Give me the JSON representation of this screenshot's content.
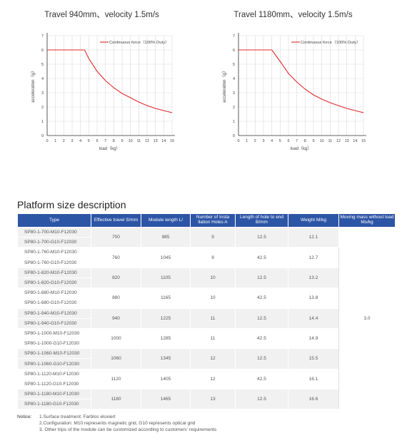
{
  "charts": [
    {
      "title": "Travel 940mm、velocity 1.5m/s",
      "ylabel": "acceleration（g）",
      "xlabel": "load（kg）",
      "legend": "Continuous force（100% Duty）",
      "line_color": "#e0282e",
      "y_ticks": [
        "0",
        "1",
        "2",
        "3",
        "4",
        "5",
        "6",
        "7"
      ],
      "x_ticks": [
        "0",
        "1",
        "2",
        "3",
        "4",
        "5",
        "6",
        "7",
        "8",
        "9",
        "10",
        "11",
        "12",
        "13",
        "14",
        "15"
      ]
    },
    {
      "title": "Travel 1180mm、velocity 1.5m/s",
      "ylabel": "acceleration（g）",
      "xlabel": "load（kg）",
      "legend": "Continuous force（100% Duty）",
      "line_color": "#e0282e",
      "y_ticks": [
        "0",
        "1",
        "2",
        "3",
        "4",
        "5",
        "6",
        "7"
      ],
      "x_ticks": [
        "0",
        "1",
        "2",
        "3",
        "4",
        "5",
        "6",
        "7",
        "8",
        "9",
        "10",
        "11",
        "12",
        "13",
        "14",
        "15"
      ]
    }
  ],
  "chart_data": [
    {
      "type": "line",
      "title": "Travel 940mm、velocity 1.5m/s",
      "xlabel": "load（kg）",
      "ylabel": "acceleration（g）",
      "xlim": [
        0,
        15
      ],
      "ylim": [
        0,
        7
      ],
      "grid": true,
      "legend_position": "top-right",
      "series": [
        {
          "name": "Continuous force（100% Duty）",
          "x": [
            0,
            4.5,
            5,
            6,
            7,
            8,
            9,
            10,
            11,
            12,
            13,
            14,
            15
          ],
          "y": [
            6.0,
            6.0,
            5.4,
            4.5,
            3.85,
            3.35,
            2.95,
            2.65,
            2.35,
            2.1,
            1.9,
            1.75,
            1.6
          ]
        }
      ]
    },
    {
      "type": "line",
      "title": "Travel 1180mm、velocity 1.5m/s",
      "xlabel": "load（kg）",
      "ylabel": "acceleration（g）",
      "xlim": [
        0,
        15
      ],
      "ylim": [
        0,
        7
      ],
      "grid": true,
      "legend_position": "top-right",
      "series": [
        {
          "name": "Continuous force（100% Duty）",
          "x": [
            0,
            4,
            5,
            6,
            7,
            8,
            9,
            10,
            11,
            12,
            13,
            14,
            15
          ],
          "y": [
            6.0,
            6.0,
            5.2,
            4.35,
            3.75,
            3.25,
            2.85,
            2.55,
            2.3,
            2.1,
            1.9,
            1.75,
            1.6
          ]
        }
      ]
    }
  ],
  "section_title": "Platform size description",
  "table": {
    "headers": [
      "Type",
      "Effective travel S/mm",
      "Module length L/",
      "Number of Insta llation Holes A",
      "Length of hole to end B/mm",
      "Weight M/kg",
      "Moving mass without load Ms/kg"
    ],
    "moving_mass": "3.0",
    "groups": [
      {
        "types": [
          "SP80-1-700-M10-F12030",
          "SP80-1-700-G10-F12030"
        ],
        "travel": "700",
        "length": "985",
        "holes": "9",
        "hole_end": "12.5",
        "weight": "12.1"
      },
      {
        "types": [
          "SP80-1-760-M10-F12030",
          "SP80-1-760-G10-F12030"
        ],
        "travel": "760",
        "length": "1045",
        "holes": "9",
        "hole_end": "42.5",
        "weight": "12.7"
      },
      {
        "types": [
          "SP80-1-820-M10-F12030",
          "SP80-1-820-G10-F12030"
        ],
        "travel": "820",
        "length": "1105",
        "holes": "10",
        "hole_end": "12.5",
        "weight": "13.2"
      },
      {
        "types": [
          "SP80-1-880-M10-F12030",
          "SP80-1-880-G10-F12030"
        ],
        "travel": "880",
        "length": "1165",
        "holes": "10",
        "hole_end": "42.5",
        "weight": "13.8"
      },
      {
        "types": [
          "SP80-1-940-M10-F12030",
          "SP80-1-940-G10-F12030"
        ],
        "travel": "940",
        "length": "1225",
        "holes": "11",
        "hole_end": "12.5",
        "weight": "14.4"
      },
      {
        "types": [
          "SP80-1-1000-M10-F12030",
          "SP80-1-1000-G10-F12030"
        ],
        "travel": "1000",
        "length": "1285",
        "holes": "11",
        "hole_end": "42.5",
        "weight": "14.9"
      },
      {
        "types": [
          "SP80-1-1060-M10-F12030",
          "SP80-1-1060-G10-F12030"
        ],
        "travel": "1060",
        "length": "1345",
        "holes": "12",
        "hole_end": "12.5",
        "weight": "15.5"
      },
      {
        "types": [
          "SP80-1-1120-M10-F12030",
          "SP80-1-1120-G10-F12030"
        ],
        "travel": "1120",
        "length": "1405",
        "holes": "12",
        "hole_end": "42.5",
        "weight": "16.1"
      },
      {
        "types": [
          "SP80-1-1180-M10-F12030",
          "SP80-1-1180-G10-F12030"
        ],
        "travel": "1180",
        "length": "1465",
        "holes": "13",
        "hole_end": "12.5",
        "weight": "16.6"
      }
    ]
  },
  "notice": {
    "label": "Notice:",
    "lines": [
      "1.Surface treatment: Farblos eloxiert",
      "2.Configuration: M10 represents magnetic grid, G10 represents optical grid",
      "3. Other trips of the module can be customized according to customers' requirements"
    ]
  }
}
